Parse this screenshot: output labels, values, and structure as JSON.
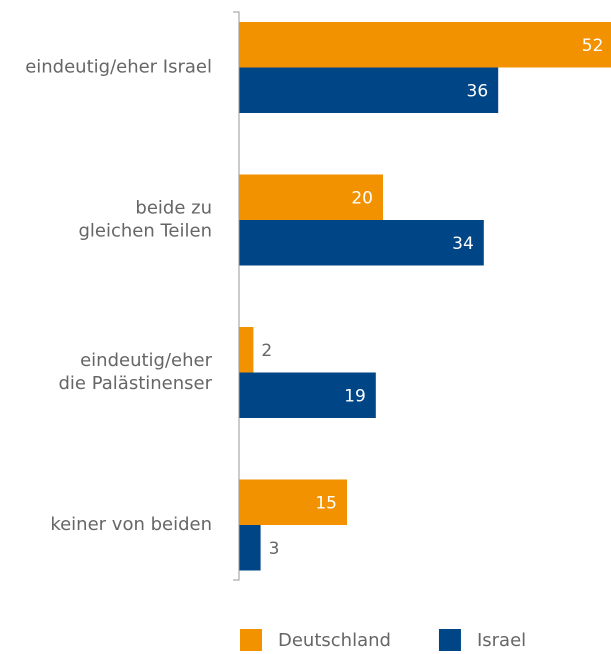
{
  "chart_data": {
    "type": "bar",
    "orientation": "horizontal",
    "categories": [
      "eindeutig/eher Israel",
      "beide zu\ngleichen Teilen",
      "eindeutig/eher\ndie Palästinenser",
      "keiner von beiden"
    ],
    "series": [
      {
        "name": "Deutschland",
        "color": "#f39200",
        "values": [
          52,
          20,
          2,
          15
        ]
      },
      {
        "name": "Israel",
        "color": "#004586",
        "values": [
          36,
          34,
          19,
          3
        ]
      }
    ],
    "legend": "bottom"
  }
}
